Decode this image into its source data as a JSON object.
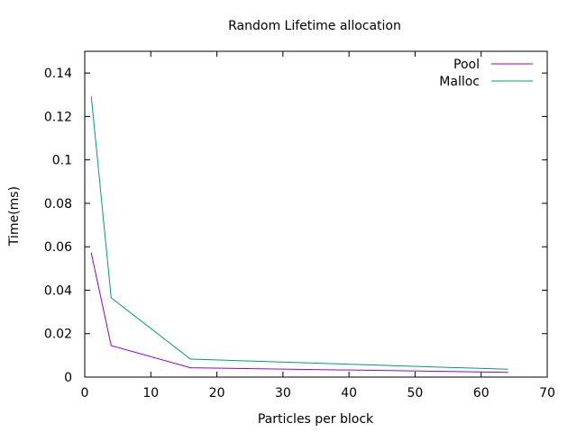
{
  "chart_data": {
    "type": "line",
    "title": "Random Lifetime allocation",
    "xlabel": "Particles per block",
    "ylabel": "Time(ms)",
    "xlim": [
      0,
      70
    ],
    "ylim": [
      0,
      0.15
    ],
    "xticks": [
      "0",
      "10",
      "20",
      "30",
      "40",
      "50",
      "60",
      "70"
    ],
    "yticks": [
      "0",
      "0.02",
      "0.04",
      "0.06",
      "0.08",
      "0.1",
      "0.12",
      "0.14"
    ],
    "grid": false,
    "legend_position": "top-right",
    "series": [
      {
        "name": "Pool",
        "color": "#9400d3",
        "x": [
          1,
          4,
          16,
          64
        ],
        "y": [
          0.057,
          0.0145,
          0.0043,
          0.0022
        ]
      },
      {
        "name": "Malloc",
        "color": "#009e73",
        "x": [
          1,
          4,
          16,
          64
        ],
        "y": [
          0.129,
          0.0365,
          0.0083,
          0.0036
        ]
      }
    ]
  }
}
